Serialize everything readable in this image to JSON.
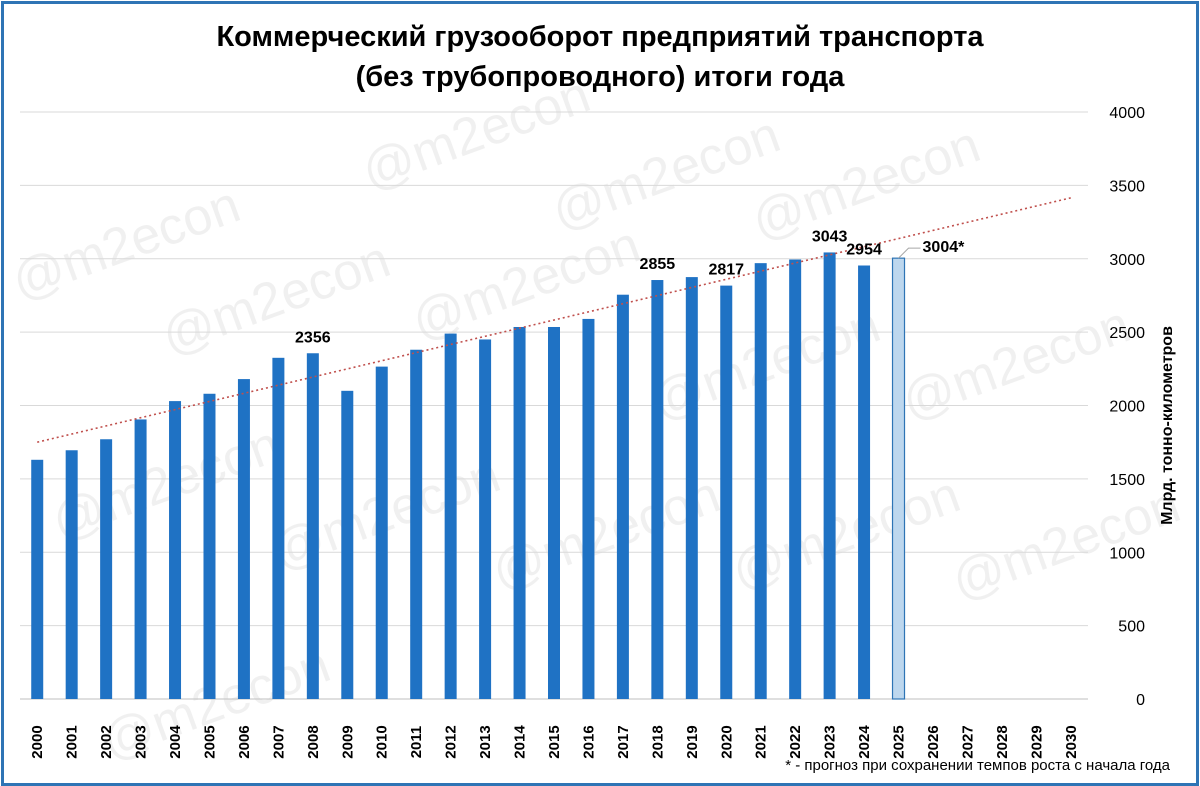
{
  "chart_data": {
    "type": "bar",
    "title_lines": [
      "Коммерческий грузооборот предприятий транспорта",
      "(без трубопроводного) итоги года"
    ],
    "ylabel": "Млрд. тонно-километров",
    "y_axis_position": "right",
    "ylim": [
      0,
      4000
    ],
    "y_ticks": [
      0,
      500,
      1000,
      1500,
      2000,
      2500,
      3000,
      3500,
      4000
    ],
    "grid": true,
    "categories": [
      "2000",
      "2001",
      "2002",
      "2003",
      "2004",
      "2005",
      "2006",
      "2007",
      "2008",
      "2009",
      "2010",
      "2011",
      "2012",
      "2013",
      "2014",
      "2015",
      "2016",
      "2017",
      "2018",
      "2019",
      "2020",
      "2021",
      "2022",
      "2023",
      "2024",
      "2025",
      "2026",
      "2027",
      "2028",
      "2029",
      "2030"
    ],
    "series": [
      {
        "values": [
          1630,
          1695,
          1770,
          1905,
          2030,
          2080,
          2180,
          2325,
          2356,
          2100,
          2265,
          2380,
          2490,
          2450,
          2535,
          2535,
          2590,
          2755,
          2855,
          2875,
          2817,
          2970,
          2995,
          3043,
          2954,
          null,
          null,
          null,
          null,
          null,
          null
        ],
        "color": "#1f72c4"
      },
      {
        "values": [
          null,
          null,
          null,
          null,
          null,
          null,
          null,
          null,
          null,
          null,
          null,
          null,
          null,
          null,
          null,
          null,
          null,
          null,
          null,
          null,
          null,
          null,
          null,
          null,
          null,
          3004,
          null,
          null,
          null,
          null,
          null
        ],
        "color": "#bdd7ee",
        "border_color": "#2e74b5"
      }
    ],
    "data_labels": [
      {
        "category": "2008",
        "text": "2356"
      },
      {
        "category": "2018",
        "text": "2855"
      },
      {
        "category": "2020",
        "text": "2817"
      },
      {
        "category": "2023",
        "text": "3043"
      },
      {
        "category": "2024",
        "text": "2954"
      },
      {
        "category": "2025",
        "text": "3004*"
      }
    ],
    "trendline": {
      "style": "dotted",
      "color": "#c0504d",
      "start": {
        "x": "2000",
        "y": 1750
      },
      "end": {
        "x": "2030",
        "y": 3415
      }
    },
    "footnote": "* - прогноз при сохранении темпов роста с начала года",
    "watermark": "@m2econ"
  }
}
